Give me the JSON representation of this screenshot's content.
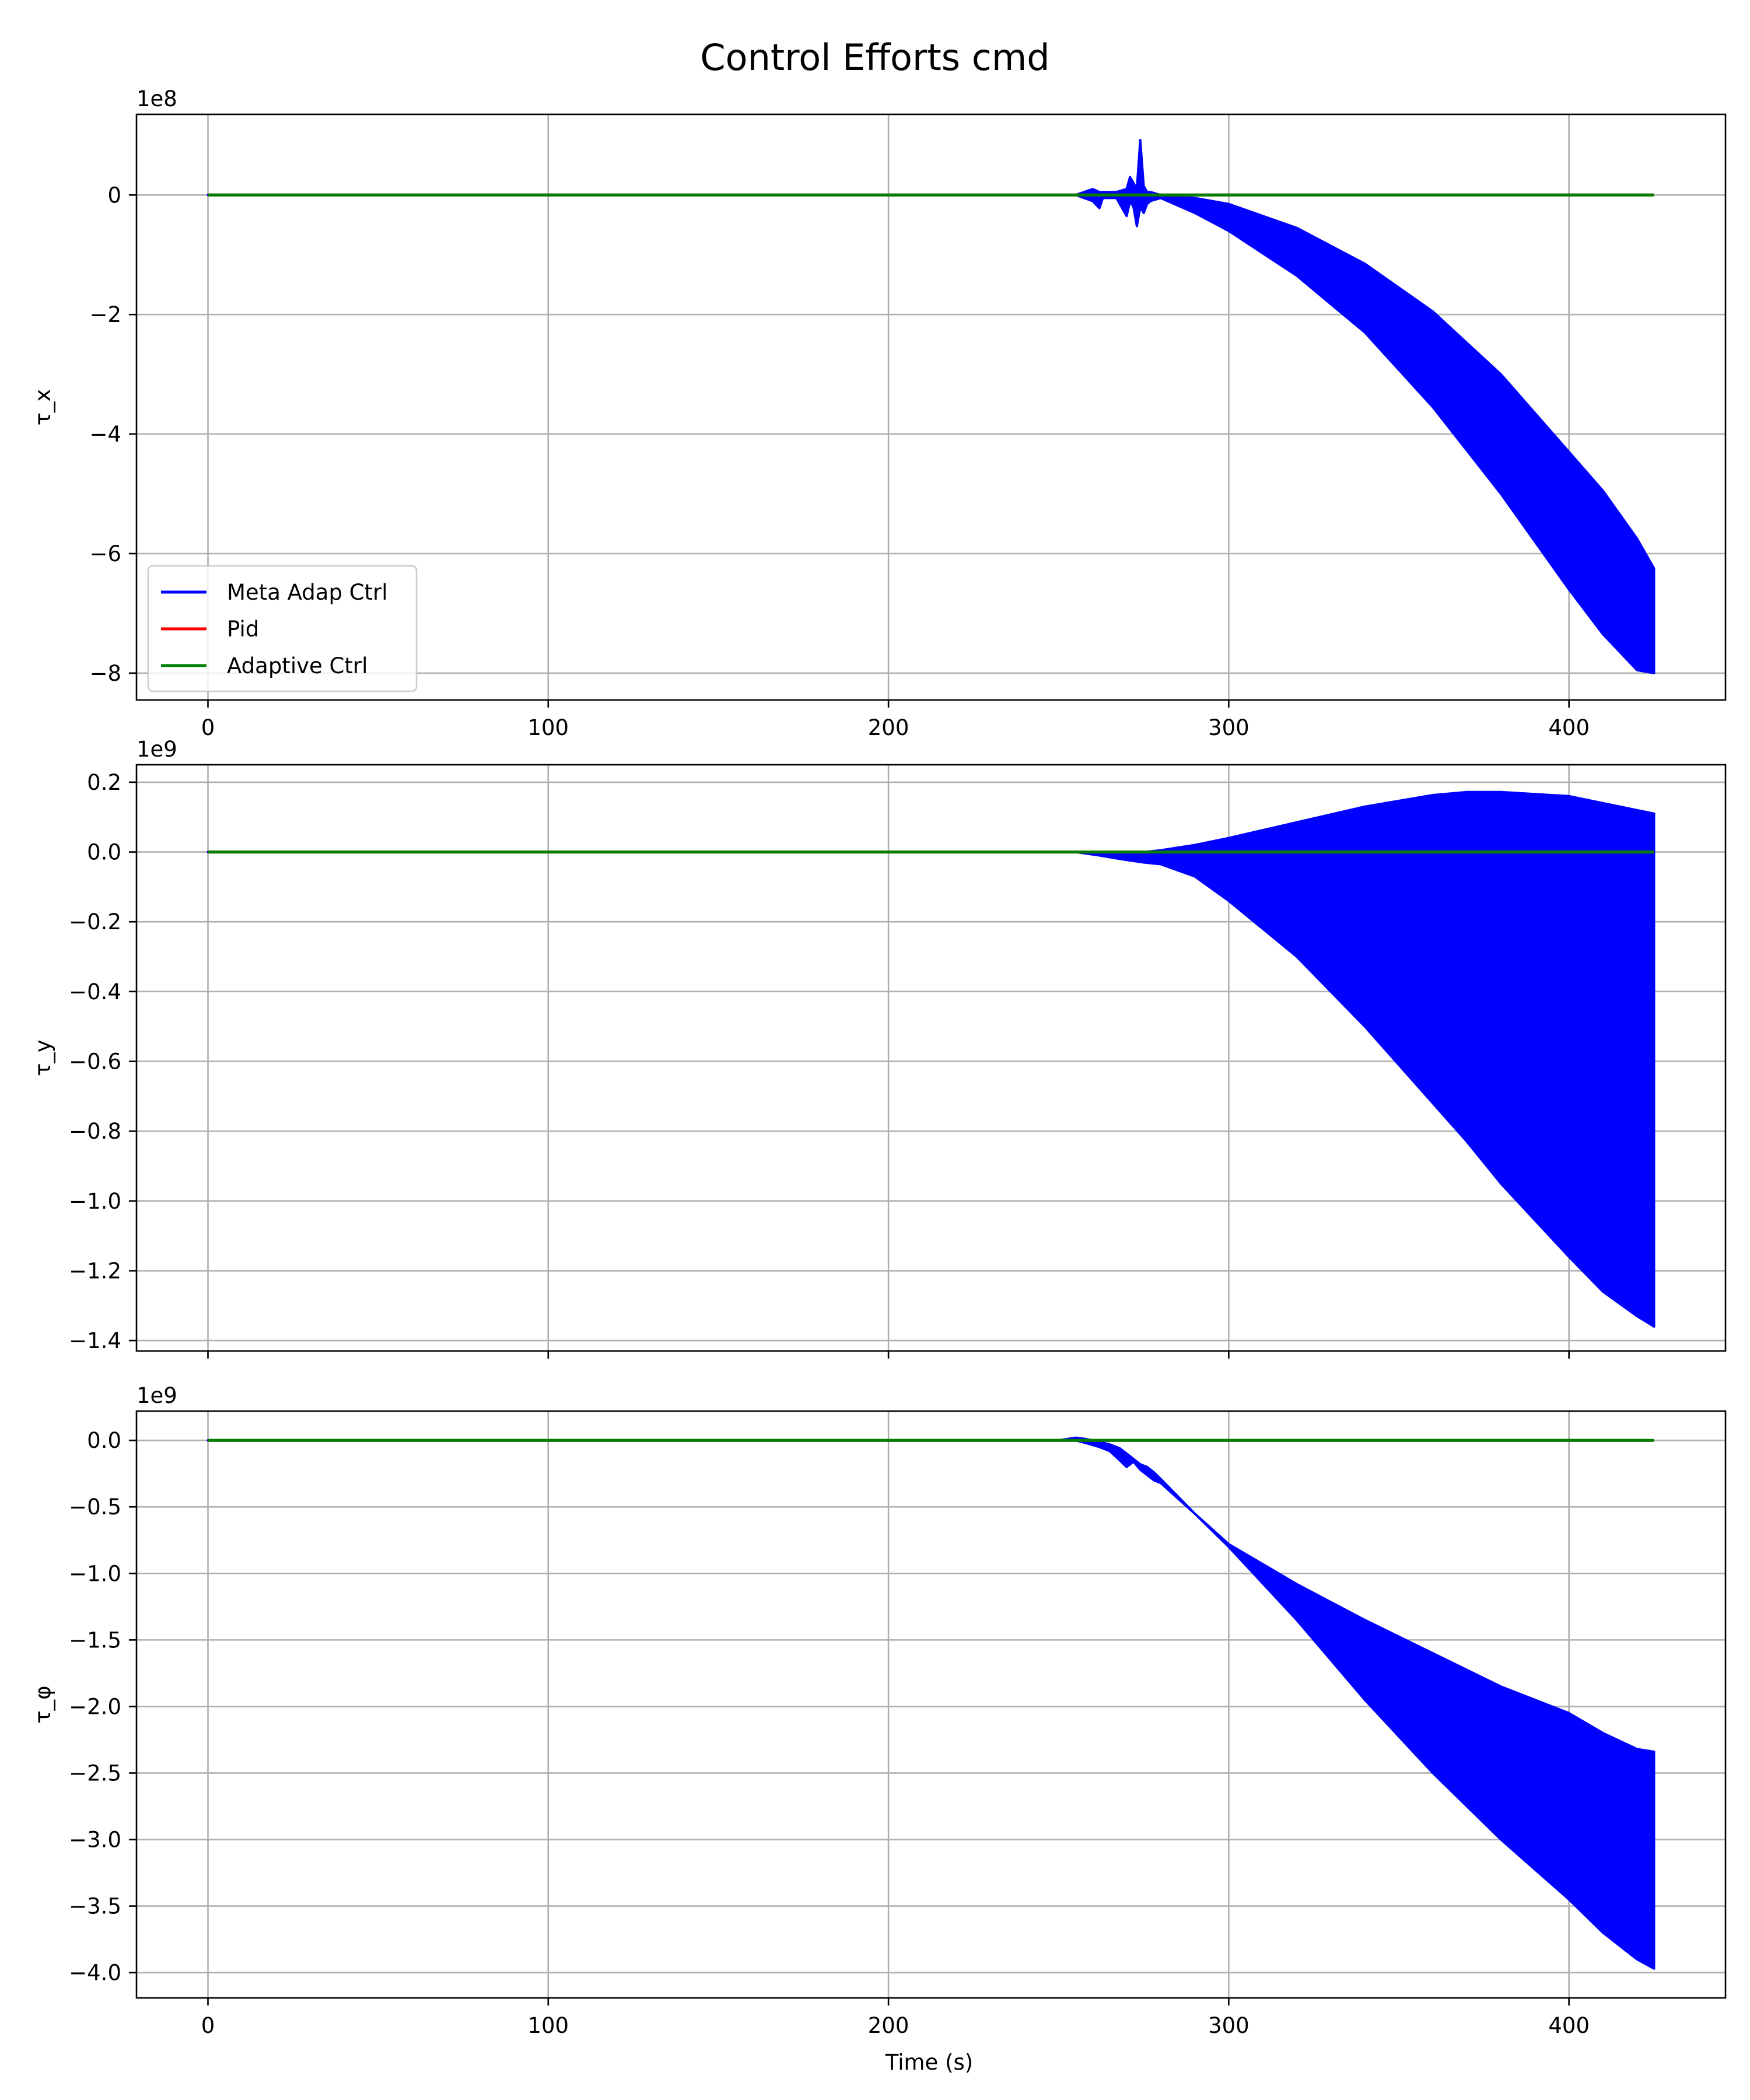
{
  "figure": {
    "title": "Control Efforts cmd",
    "xlabel": "Time (s)"
  },
  "chart_data": [
    {
      "type": "line",
      "ylabel": "τ_x",
      "offset_text": "1e8",
      "xlim": [
        -21,
        446
      ],
      "ylim": [
        -8.45,
        1.35
      ],
      "x_ticks": [
        0,
        100,
        200,
        300,
        400
      ],
      "x_tick_labels": [
        "0",
        "100",
        "200",
        "300",
        "400"
      ],
      "y_ticks": [
        0,
        -2,
        -4,
        -6,
        -8
      ],
      "y_tick_labels": [
        "0",
        "−2",
        "−4",
        "−6",
        "−8"
      ],
      "grid": true,
      "legend": {
        "location": "lower-left",
        "entries": [
          "Meta Adap Ctrl",
          "Pid",
          "Adaptive Ctrl"
        ]
      },
      "series": [
        {
          "name": "Meta Adap Ctrl",
          "color": "#0000ff",
          "render": "band",
          "x": [
            0,
            255,
            260,
            262,
            263,
            265,
            267,
            270,
            271,
            272,
            273,
            274,
            275,
            276,
            277,
            280,
            290,
            300,
            320,
            340,
            360,
            380,
            400,
            410,
            420,
            425
          ],
          "upper": [
            0,
            0,
            0.1,
            0.05,
            0.05,
            0.05,
            0.05,
            0.1,
            0.3,
            0.2,
            0.1,
            0.92,
            0.15,
            0.05,
            0.05,
            0.0,
            -0.05,
            -0.15,
            -0.55,
            -1.15,
            -1.95,
            -3.0,
            -4.3,
            -4.95,
            -5.75,
            -6.25
          ],
          "lower": [
            0,
            0,
            -0.1,
            -0.22,
            -0.05,
            -0.05,
            -0.05,
            -0.35,
            -0.1,
            -0.2,
            -0.52,
            -0.2,
            -0.3,
            -0.15,
            -0.1,
            -0.05,
            -0.3,
            -0.6,
            -1.35,
            -2.3,
            -3.55,
            -5.0,
            -6.6,
            -7.35,
            -7.95,
            -8.0
          ]
        },
        {
          "name": "Pid",
          "color": "#ff0000",
          "render": "line",
          "x": [
            0,
            425
          ],
          "y": [
            0,
            0
          ]
        },
        {
          "name": "Adaptive Ctrl",
          "color": "#008000",
          "render": "line",
          "x": [
            0,
            425
          ],
          "y": [
            0,
            0
          ]
        }
      ]
    },
    {
      "type": "line",
      "ylabel": "τ_y",
      "offset_text": "1e9",
      "xlim": [
        -21,
        446
      ],
      "ylim": [
        -1.43,
        0.25
      ],
      "x_ticks": [
        0,
        100,
        200,
        300,
        400
      ],
      "x_tick_labels": [
        "",
        "",
        "",
        "",
        ""
      ],
      "y_ticks": [
        0.2,
        0.0,
        -0.2,
        -0.4,
        -0.6,
        -0.8,
        -1.0,
        -1.2,
        -1.4
      ],
      "y_tick_labels": [
        "0.2",
        "0.0",
        "−0.2",
        "−0.4",
        "−0.6",
        "−0.8",
        "−1.0",
        "−1.2",
        "−1.4"
      ],
      "grid": true,
      "series": [
        {
          "name": "Meta Adap Ctrl",
          "color": "#0000ff",
          "render": "band",
          "x": [
            0,
            255,
            262,
            268,
            275,
            280,
            290,
            300,
            320,
            340,
            360,
            370,
            380,
            400,
            410,
            420,
            425
          ],
          "upper": [
            0,
            0,
            0.0,
            0.0,
            0.0,
            0.005,
            0.02,
            0.04,
            0.085,
            0.13,
            0.163,
            0.172,
            0.172,
            0.16,
            0.14,
            0.12,
            0.11
          ],
          "lower": [
            0,
            0,
            -0.01,
            -0.02,
            -0.03,
            -0.035,
            -0.07,
            -0.14,
            -0.3,
            -0.5,
            -0.72,
            -0.83,
            -0.95,
            -1.16,
            -1.26,
            -1.33,
            -1.36
          ]
        },
        {
          "name": "Pid",
          "color": "#ff0000",
          "render": "line",
          "x": [
            0,
            425
          ],
          "y": [
            0,
            0
          ]
        },
        {
          "name": "Adaptive Ctrl",
          "color": "#008000",
          "render": "line",
          "x": [
            0,
            425
          ],
          "y": [
            0,
            0
          ]
        }
      ]
    },
    {
      "type": "line",
      "ylabel": "τ_φ",
      "offset_text": "1e9",
      "xlim": [
        -21,
        446
      ],
      "ylim": [
        -4.19,
        0.22
      ],
      "x_ticks": [
        0,
        100,
        200,
        300,
        400
      ],
      "x_tick_labels": [
        "0",
        "100",
        "200",
        "300",
        "400"
      ],
      "y_ticks": [
        0.0,
        -0.5,
        -1.0,
        -1.5,
        -2.0,
        -2.5,
        -3.0,
        -3.5,
        -4.0
      ],
      "y_tick_labels": [
        "0.0",
        "−0.5",
        "−1.0",
        "−1.5",
        "−2.0",
        "−2.5",
        "−3.0",
        "−3.5",
        "−4.0"
      ],
      "grid": true,
      "series": [
        {
          "name": "Meta Adap Ctrl",
          "color": "#0000ff",
          "render": "band",
          "x": [
            0,
            250,
            255,
            258,
            262,
            265,
            268,
            270,
            272,
            274,
            276,
            278,
            280,
            290,
            300,
            320,
            340,
            360,
            380,
            400,
            410,
            420,
            425
          ],
          "upper": [
            0,
            0,
            0.02,
            0.01,
            -0.01,
            -0.03,
            -0.06,
            -0.1,
            -0.14,
            -0.18,
            -0.2,
            -0.24,
            -0.29,
            -0.55,
            -0.78,
            -1.08,
            -1.35,
            -1.6,
            -1.85,
            -2.05,
            -2.2,
            -2.32,
            -2.34
          ],
          "lower": [
            0,
            0,
            0.0,
            -0.02,
            -0.05,
            -0.08,
            -0.15,
            -0.2,
            -0.16,
            -0.22,
            -0.26,
            -0.3,
            -0.32,
            -0.55,
            -0.8,
            -1.35,
            -1.95,
            -2.5,
            -3.0,
            -3.45,
            -3.7,
            -3.9,
            -3.97
          ]
        },
        {
          "name": "Pid",
          "color": "#ff0000",
          "render": "line",
          "x": [
            0,
            425
          ],
          "y": [
            0,
            0
          ]
        },
        {
          "name": "Adaptive Ctrl",
          "color": "#008000",
          "render": "line",
          "x": [
            0,
            425
          ],
          "y": [
            0,
            0
          ]
        }
      ]
    }
  ]
}
